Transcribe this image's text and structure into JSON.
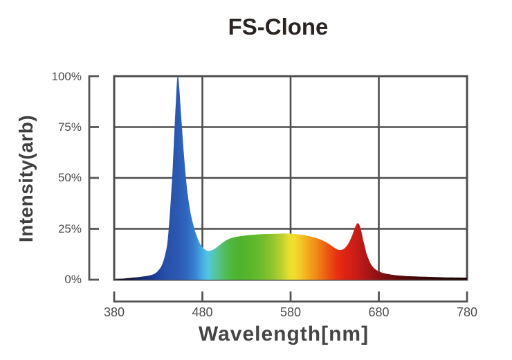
{
  "title": "FS-Clone",
  "colors": {
    "background": "#ffffff",
    "grid": "#4e4e4e",
    "frame": "#4e4e4e",
    "bracket": "#555555",
    "title_text": "#2a2422",
    "axis_label_text": "#454545",
    "tick_text": "#4c4c4c"
  },
  "y_axis": {
    "label": "Intensity(arb)",
    "ticks": [
      "100%",
      "75%",
      "50%",
      "25%",
      "0%"
    ]
  },
  "x_axis": {
    "label": "Wavelength[nm]",
    "ticks": [
      "380",
      "480",
      "580",
      "680",
      "780"
    ]
  },
  "chart_data": {
    "type": "area",
    "title": "FS-Clone",
    "xlabel": "Wavelength[nm]",
    "ylabel": "Intensity(arb)",
    "x_range": [
      380,
      780
    ],
    "y_range": [
      0,
      100
    ],
    "x_gridlines": [
      380,
      480,
      580,
      680,
      780
    ],
    "y_gridlines": [
      0,
      25,
      50,
      75,
      100
    ],
    "grid": true,
    "legend": false,
    "description": "Full-spectrum LED spectral power distribution: narrow royal-blue peak at ~452 nm reaching 100%, broad phosphor plateau of 14-23% spanning 490-630 nm with maximum ~22.7% near 575 nm, secondary deep-red peak ~27.8% at ~656 nm, and a faint far-red tail of 1-2% out to 780 nm. Area fill is colored by wavelength (violet-blue-cyan-green-yellow-orange-red-dark red).",
    "points": [
      [
        380,
        0
      ],
      [
        388,
        0.4
      ],
      [
        394,
        0.7
      ],
      [
        400,
        1.0
      ],
      [
        408,
        1.3
      ],
      [
        415,
        1.7
      ],
      [
        421,
        2.2
      ],
      [
        426,
        3.0
      ],
      [
        430,
        4.5
      ],
      [
        434,
        7
      ],
      [
        437,
        11
      ],
      [
        440,
        17
      ],
      [
        442,
        26
      ],
      [
        444,
        38
      ],
      [
        446,
        52
      ],
      [
        448,
        70
      ],
      [
        450,
        88
      ],
      [
        451.5,
        99
      ],
      [
        452.5,
        100
      ],
      [
        454,
        93
      ],
      [
        456,
        80
      ],
      [
        459,
        62
      ],
      [
        462,
        47
      ],
      [
        465,
        37
      ],
      [
        468,
        30
      ],
      [
        471,
        25
      ],
      [
        474,
        21
      ],
      [
        477,
        18
      ],
      [
        480,
        16
      ],
      [
        483,
        14.8
      ],
      [
        486,
        14.2
      ],
      [
        490,
        14.4
      ],
      [
        494,
        15.2
      ],
      [
        498,
        16.5
      ],
      [
        503,
        18.2
      ],
      [
        508,
        19.6
      ],
      [
        513,
        20.5
      ],
      [
        518,
        21
      ],
      [
        525,
        21.5
      ],
      [
        533,
        21.9
      ],
      [
        541,
        22.2
      ],
      [
        550,
        22.4
      ],
      [
        558,
        22.5
      ],
      [
        566,
        22.6
      ],
      [
        574,
        22.7
      ],
      [
        581,
        22.6
      ],
      [
        588,
        22.3
      ],
      [
        595,
        21.9
      ],
      [
        602,
        21.3
      ],
      [
        608,
        20.6
      ],
      [
        614,
        19.7
      ],
      [
        619,
        18.7
      ],
      [
        624,
        17.4
      ],
      [
        628,
        16.2
      ],
      [
        632,
        15.1
      ],
      [
        635,
        14.6
      ],
      [
        638,
        14.7
      ],
      [
        641,
        15.4
      ],
      [
        644,
        16.8
      ],
      [
        647,
        19
      ],
      [
        650,
        22
      ],
      [
        652,
        24.5
      ],
      [
        654,
        26.6
      ],
      [
        656,
        27.8
      ],
      [
        658,
        26.8
      ],
      [
        660,
        24
      ],
      [
        662,
        20
      ],
      [
        664,
        16.5
      ],
      [
        666,
        13
      ],
      [
        669,
        9.5
      ],
      [
        672,
        7
      ],
      [
        675,
        5.5
      ],
      [
        679,
        4.3
      ],
      [
        684,
        3.4
      ],
      [
        690,
        2.8
      ],
      [
        697,
        2.3
      ],
      [
        705,
        2.0
      ],
      [
        715,
        1.7
      ],
      [
        728,
        1.5
      ],
      [
        744,
        1.3
      ],
      [
        760,
        1.1
      ],
      [
        780,
        1.0
      ]
    ],
    "gradient_stops": [
      {
        "at": 380,
        "color": "#06060e"
      },
      {
        "at": 398,
        "color": "#0b1033"
      },
      {
        "at": 412,
        "color": "#142a72"
      },
      {
        "at": 425,
        "color": "#1d3d95"
      },
      {
        "at": 438,
        "color": "#2650a8"
      },
      {
        "at": 450,
        "color": "#2a57af"
      },
      {
        "at": 462,
        "color": "#2f67be"
      },
      {
        "at": 472,
        "color": "#3884d0"
      },
      {
        "at": 480,
        "color": "#47ade2"
      },
      {
        "at": 487,
        "color": "#54c6df"
      },
      {
        "at": 494,
        "color": "#55c5a8"
      },
      {
        "at": 502,
        "color": "#53bf71"
      },
      {
        "at": 511,
        "color": "#50b841"
      },
      {
        "at": 522,
        "color": "#4eb22d"
      },
      {
        "at": 536,
        "color": "#5cb72c"
      },
      {
        "at": 549,
        "color": "#74bd2d"
      },
      {
        "at": 560,
        "color": "#92c52e"
      },
      {
        "at": 570,
        "color": "#bdd02f"
      },
      {
        "at": 578,
        "color": "#e7df30"
      },
      {
        "at": 584,
        "color": "#f3dd2c"
      },
      {
        "at": 592,
        "color": "#f4c526"
      },
      {
        "at": 600,
        "color": "#f3a81e"
      },
      {
        "at": 609,
        "color": "#f18a17"
      },
      {
        "at": 617,
        "color": "#ef6b14"
      },
      {
        "at": 625,
        "color": "#ec4b11"
      },
      {
        "at": 633,
        "color": "#e73013"
      },
      {
        "at": 643,
        "color": "#dc2214"
      },
      {
        "at": 653,
        "color": "#cc1d17"
      },
      {
        "at": 664,
        "color": "#b01916"
      },
      {
        "at": 676,
        "color": "#931413"
      },
      {
        "at": 690,
        "color": "#750f0f"
      },
      {
        "at": 706,
        "color": "#570b0b"
      },
      {
        "at": 726,
        "color": "#3d0808"
      },
      {
        "at": 750,
        "color": "#2a0606"
      },
      {
        "at": 780,
        "color": "#190404"
      }
    ]
  }
}
